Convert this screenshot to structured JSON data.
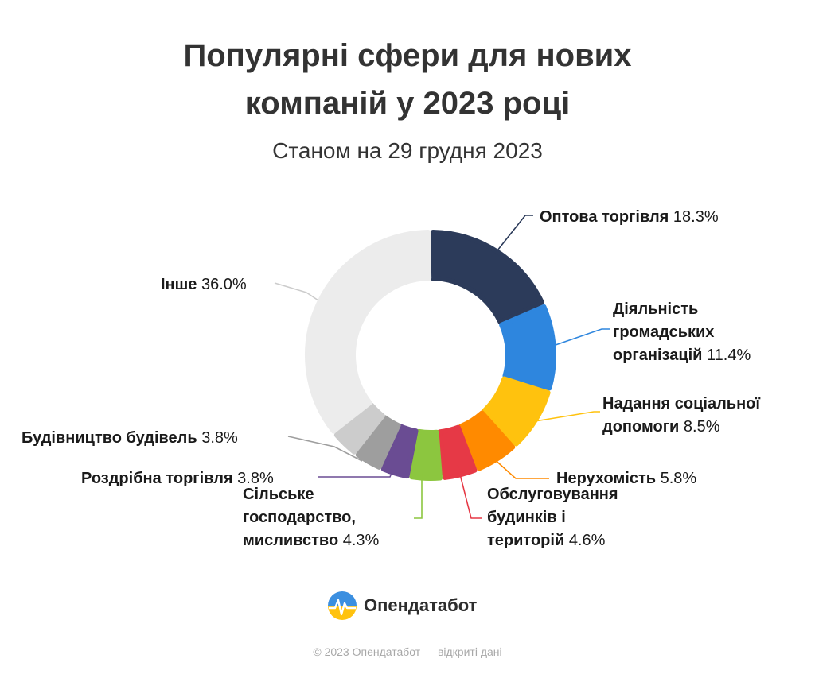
{
  "header": {
    "title_line1": "Популярні сфери для нових",
    "title_line2": "компаній у 2023 році",
    "subtitle": "Станом на 29 грудня 2023"
  },
  "chart_data": {
    "type": "pie",
    "donut": true,
    "title": "Популярні сфери для нових компаній у 2023 році",
    "subtitle": "Станом на 29 грудня 2023",
    "unit": "%",
    "slices": [
      {
        "label": "Оптова торгівля",
        "value": 18.3,
        "value_text": "18.3%",
        "color": "#2c3b5a"
      },
      {
        "label": "Діяльність громадських організацій",
        "value": 11.4,
        "value_text": "11.4%",
        "color": "#2e86de"
      },
      {
        "label": "Надання соціальної допомоги",
        "value": 8.5,
        "value_text": "8.5%",
        "color": "#ffc20e"
      },
      {
        "label": "Нерухомість",
        "value": 5.8,
        "value_text": "5.8%",
        "color": "#ff8a00"
      },
      {
        "label": "Обслуговування будинків і територій",
        "value": 4.6,
        "value_text": "4.6%",
        "color": "#e63946"
      },
      {
        "label": "Сільське господарство, мисливство",
        "value": 4.3,
        "value_text": "4.3%",
        "color": "#8cc63f"
      },
      {
        "label": "Роздрібна торгівля",
        "value": 3.8,
        "value_text": "3.8%",
        "color": "#6a4c93"
      },
      {
        "label": "Будівництво будівель",
        "value": 3.8,
        "value_text": "3.8%",
        "color": "#9e9e9e"
      },
      {
        "label": "Будівництво будівель",
        "value": 3.8,
        "value_text": "",
        "color": "#cccccc"
      },
      {
        "label": "Інше",
        "value": 36.0,
        "value_text": "36.0%",
        "color": "#ececec"
      }
    ]
  },
  "labels": {
    "wholesale": {
      "name": "Оптова торгівля",
      "value": "18.3%"
    },
    "public_orgs": {
      "name1": "Діяльність",
      "name2": "громадських",
      "name3": "організацій",
      "value": "11.4%"
    },
    "social": {
      "name1": "Надання соціальної",
      "name2": "допомоги",
      "value": "8.5%"
    },
    "real_estate": {
      "name": "Нерухомість",
      "value": "5.8%"
    },
    "services": {
      "name1": "Обслуговування",
      "name2": "будинків і",
      "name3": "територій",
      "value": "4.6%"
    },
    "agriculture": {
      "name1": "Сільське",
      "name2": "господарство,",
      "name3": "мисливство",
      "value": "4.3%"
    },
    "retail": {
      "name": "Роздрібна торгівля",
      "value": "3.8%"
    },
    "construction": {
      "name": "Будівництво будівель",
      "value": "3.8%"
    },
    "other": {
      "name": "Інше",
      "value": "36.0%"
    }
  },
  "brand": {
    "name": "Опендатабот"
  },
  "footer": {
    "text": "© 2023 Опендатабот — відкриті дані"
  }
}
